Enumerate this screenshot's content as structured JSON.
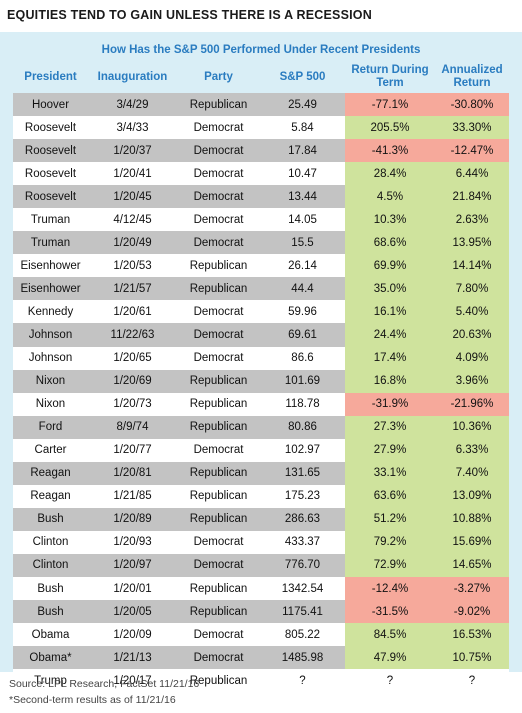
{
  "title": "EQUITIES TEND TO GAIN UNLESS THERE IS A RECESSION",
  "subtitle": "How Has the S&P 500 Performed Under Recent Presidents",
  "headers": {
    "president": "President",
    "inauguration": "Inauguration",
    "party": "Party",
    "sp500": "S&P 500",
    "return_line1": "Return During",
    "return_line2": "Term",
    "annualized_line1": "Annualized",
    "annualized_line2": "Return"
  },
  "colors": {
    "positive": "#cfe39d",
    "negative": "#f6a99b",
    "header_text": "#2a7cc0",
    "panel_bg": "#d9eef6"
  },
  "rows": [
    {
      "president": "Hoover",
      "inauguration": "3/4/29",
      "party": "Republican",
      "sp500": "25.49",
      "return": "-77.1%",
      "annualized": "-30.80%",
      "sign": "neg"
    },
    {
      "president": "Roosevelt",
      "inauguration": "3/4/33",
      "party": "Democrat",
      "sp500": "5.84",
      "return": "205.5%",
      "annualized": "33.30%",
      "sign": "pos"
    },
    {
      "president": "Roosevelt",
      "inauguration": "1/20/37",
      "party": "Democrat",
      "sp500": "17.84",
      "return": "-41.3%",
      "annualized": "-12.47%",
      "sign": "neg"
    },
    {
      "president": "Roosevelt",
      "inauguration": "1/20/41",
      "party": "Democrat",
      "sp500": "10.47",
      "return": "28.4%",
      "annualized": "6.44%",
      "sign": "pos"
    },
    {
      "president": "Roosevelt",
      "inauguration": "1/20/45",
      "party": "Democrat",
      "sp500": "13.44",
      "return": "4.5%",
      "annualized": "21.84%",
      "sign": "pos"
    },
    {
      "president": "Truman",
      "inauguration": "4/12/45",
      "party": "Democrat",
      "sp500": "14.05",
      "return": "10.3%",
      "annualized": "2.63%",
      "sign": "pos"
    },
    {
      "president": "Truman",
      "inauguration": "1/20/49",
      "party": "Democrat",
      "sp500": "15.5",
      "return": "68.6%",
      "annualized": "13.95%",
      "sign": "pos"
    },
    {
      "president": "Eisenhower",
      "inauguration": "1/20/53",
      "party": "Republican",
      "sp500": "26.14",
      "return": "69.9%",
      "annualized": "14.14%",
      "sign": "pos"
    },
    {
      "president": "Eisenhower",
      "inauguration": "1/21/57",
      "party": "Republican",
      "sp500": "44.4",
      "return": "35.0%",
      "annualized": "7.80%",
      "sign": "pos"
    },
    {
      "president": "Kennedy",
      "inauguration": "1/20/61",
      "party": "Democrat",
      "sp500": "59.96",
      "return": "16.1%",
      "annualized": "5.40%",
      "sign": "pos"
    },
    {
      "president": "Johnson",
      "inauguration": "11/22/63",
      "party": "Democrat",
      "sp500": "69.61",
      "return": "24.4%",
      "annualized": "20.63%",
      "sign": "pos"
    },
    {
      "president": "Johnson",
      "inauguration": "1/20/65",
      "party": "Democrat",
      "sp500": "86.6",
      "return": "17.4%",
      "annualized": "4.09%",
      "sign": "pos"
    },
    {
      "president": "Nixon",
      "inauguration": "1/20/69",
      "party": "Republican",
      "sp500": "101.69",
      "return": "16.8%",
      "annualized": "3.96%",
      "sign": "pos"
    },
    {
      "president": "Nixon",
      "inauguration": "1/20/73",
      "party": "Republican",
      "sp500": "118.78",
      "return": "-31.9%",
      "annualized": "-21.96%",
      "sign": "neg"
    },
    {
      "president": "Ford",
      "inauguration": "8/9/74",
      "party": "Republican",
      "sp500": "80.86",
      "return": "27.3%",
      "annualized": "10.36%",
      "sign": "pos"
    },
    {
      "president": "Carter",
      "inauguration": "1/20/77",
      "party": "Democrat",
      "sp500": "102.97",
      "return": "27.9%",
      "annualized": "6.33%",
      "sign": "pos"
    },
    {
      "president": "Reagan",
      "inauguration": "1/20/81",
      "party": "Republican",
      "sp500": "131.65",
      "return": "33.1%",
      "annualized": "7.40%",
      "sign": "pos"
    },
    {
      "president": "Reagan",
      "inauguration": "1/21/85",
      "party": "Republican",
      "sp500": "175.23",
      "return": "63.6%",
      "annualized": "13.09%",
      "sign": "pos"
    },
    {
      "president": "Bush",
      "inauguration": "1/20/89",
      "party": "Republican",
      "sp500": "286.63",
      "return": "51.2%",
      "annualized": "10.88%",
      "sign": "pos"
    },
    {
      "president": "Clinton",
      "inauguration": "1/20/93",
      "party": "Democrat",
      "sp500": "433.37",
      "return": "79.2%",
      "annualized": "15.69%",
      "sign": "pos"
    },
    {
      "president": "Clinton",
      "inauguration": "1/20/97",
      "party": "Democrat",
      "sp500": "776.70",
      "return": "72.9%",
      "annualized": "14.65%",
      "sign": "pos"
    },
    {
      "president": "Bush",
      "inauguration": "1/20/01",
      "party": "Republican",
      "sp500": "1342.54",
      "return": "-12.4%",
      "annualized": "-3.27%",
      "sign": "neg"
    },
    {
      "president": "Bush",
      "inauguration": "1/20/05",
      "party": "Republican",
      "sp500": "1175.41",
      "return": "-31.5%",
      "annualized": "-9.02%",
      "sign": "neg"
    },
    {
      "president": "Obama",
      "inauguration": "1/20/09",
      "party": "Democrat",
      "sp500": "805.22",
      "return": "84.5%",
      "annualized": "16.53%",
      "sign": "pos"
    },
    {
      "president": "Obama*",
      "inauguration": "1/21/13",
      "party": "Democrat",
      "sp500": "1485.98",
      "return": "47.9%",
      "annualized": "10.75%",
      "sign": "pos"
    },
    {
      "president": "Trump",
      "inauguration": "1/20/17",
      "party": "Republican",
      "sp500": "?",
      "return": "?",
      "annualized": "?",
      "sign": "na"
    }
  ],
  "footer": {
    "source": "Source: LPL Research, FactSet   11/21/16",
    "note": "*Second-term results as of 11/21/16"
  }
}
